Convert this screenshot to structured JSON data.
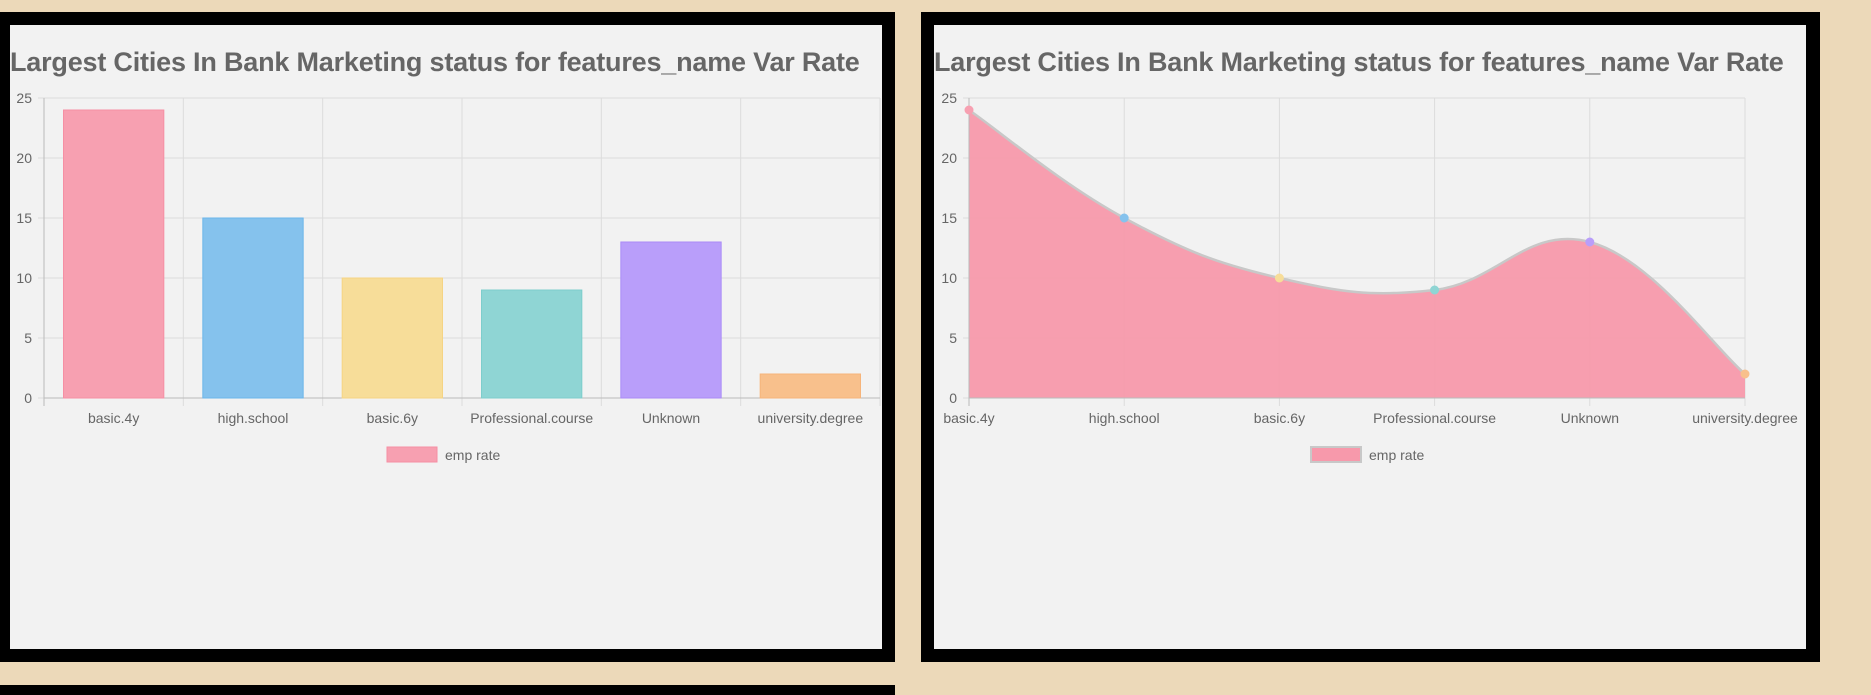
{
  "chart_data": [
    {
      "type": "bar",
      "title": "Largest Cities In Bank Marketing status for features_name Var Rate",
      "categories": [
        "basic.4y",
        "high.school",
        "basic.6y",
        "Professional.course",
        "Unknown",
        "university.degree"
      ],
      "series": [
        {
          "name": "emp rate",
          "values": [
            24,
            15,
            10,
            9,
            13,
            2
          ]
        }
      ],
      "bar_colors": [
        "#f7a0b1",
        "#85c2ed",
        "#f7dd99",
        "#8fd5d4",
        "#b99efa",
        "#f8c08c"
      ],
      "bar_border_colors": [
        "#f68fa4",
        "#6bb5ea",
        "#f5d484",
        "#7dcdcc",
        "#aa8bf7",
        "#f6b47a"
      ],
      "ylim": [
        0,
        25
      ],
      "yticks": [
        0,
        5,
        10,
        15,
        20,
        25
      ],
      "grid": true,
      "legend": "bottom",
      "xlabel": "",
      "ylabel": ""
    },
    {
      "type": "area",
      "title": "Largest Cities In Bank Marketing status for features_name Var Rate",
      "categories": [
        "basic.4y",
        "high.school",
        "basic.6y",
        "Professional.course",
        "Unknown",
        "university.degree"
      ],
      "series": [
        {
          "name": "emp rate",
          "values": [
            24,
            15,
            10,
            9,
            13,
            2
          ]
        }
      ],
      "fill_color": "#f799ab",
      "line_color": "#c8c8c8",
      "point_colors": [
        "#f7a0b1",
        "#85c2ed",
        "#f7dd99",
        "#8fd5d4",
        "#b99efa",
        "#f8c08c"
      ],
      "ylim": [
        0,
        25
      ],
      "yticks": [
        0,
        5,
        10,
        15,
        20,
        25
      ],
      "grid": true,
      "legend": "bottom",
      "xlabel": "",
      "ylabel": ""
    }
  ]
}
